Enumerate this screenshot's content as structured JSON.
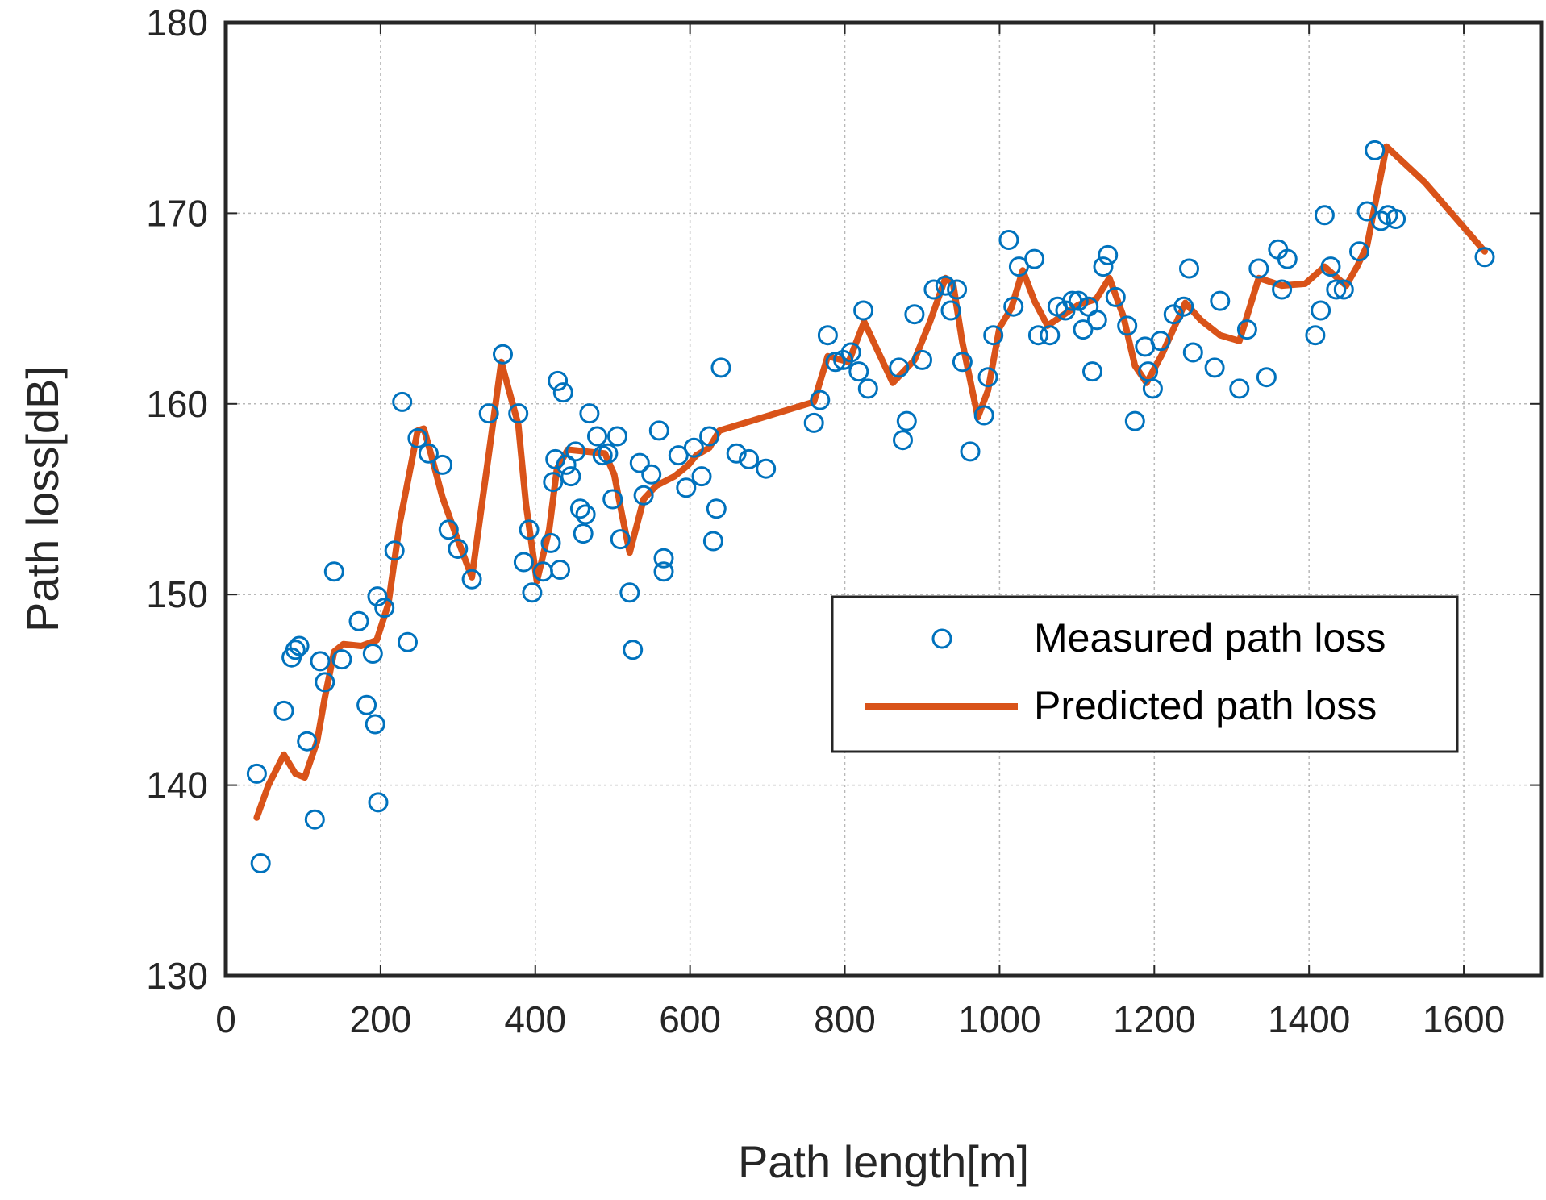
{
  "chart_data": {
    "type": "scatter",
    "title": "",
    "xlabel": "Path length[m]",
    "ylabel": "Path loss[dB]",
    "xlim": [
      0,
      1700
    ],
    "ylim": [
      130,
      180
    ],
    "xticks": [
      0,
      200,
      400,
      600,
      800,
      1000,
      1200,
      1400,
      1600
    ],
    "yticks": [
      130,
      140,
      150,
      160,
      170,
      180
    ],
    "grid": true,
    "legend_position": "center-right",
    "colors": {
      "measured": "#0072BD",
      "predicted": "#D95319"
    },
    "series": [
      {
        "name": "Measured path loss",
        "kind": "markers",
        "marker": "circle-open",
        "points": [
          [
            40,
            140.6
          ],
          [
            45,
            135.9
          ],
          [
            75,
            143.9
          ],
          [
            85,
            146.7
          ],
          [
            90,
            147.1
          ],
          [
            95,
            147.3
          ],
          [
            105,
            142.3
          ],
          [
            115,
            138.2
          ],
          [
            122,
            146.5
          ],
          [
            128,
            145.4
          ],
          [
            140,
            151.2
          ],
          [
            150,
            146.6
          ],
          [
            172,
            148.6
          ],
          [
            182,
            144.2
          ],
          [
            190,
            146.9
          ],
          [
            193,
            143.2
          ],
          [
            196,
            149.9
          ],
          [
            197,
            139.1
          ],
          [
            205,
            149.3
          ],
          [
            218,
            152.3
          ],
          [
            228,
            160.1
          ],
          [
            235,
            147.5
          ],
          [
            248,
            158.2
          ],
          [
            262,
            157.4
          ],
          [
            280,
            156.8
          ],
          [
            288,
            153.4
          ],
          [
            300,
            152.4
          ],
          [
            318,
            150.8
          ],
          [
            340,
            159.5
          ],
          [
            358,
            162.6
          ],
          [
            378,
            159.5
          ],
          [
            385,
            151.7
          ],
          [
            392,
            153.4
          ],
          [
            396,
            150.1
          ],
          [
            410,
            151.2
          ],
          [
            420,
            152.7
          ],
          [
            423,
            155.9
          ],
          [
            426,
            157.1
          ],
          [
            429,
            161.2
          ],
          [
            432,
            151.3
          ],
          [
            436,
            160.6
          ],
          [
            440,
            156.8
          ],
          [
            446,
            156.2
          ],
          [
            452,
            157.5
          ],
          [
            458,
            154.5
          ],
          [
            462,
            153.2
          ],
          [
            465,
            154.2
          ],
          [
            470,
            159.5
          ],
          [
            480,
            158.3
          ],
          [
            487,
            157.3
          ],
          [
            494,
            157.4
          ],
          [
            500,
            155.0
          ],
          [
            506,
            158.3
          ],
          [
            510,
            152.9
          ],
          [
            522,
            150.1
          ],
          [
            526,
            147.1
          ],
          [
            535,
            156.9
          ],
          [
            540,
            155.2
          ],
          [
            550,
            156.3
          ],
          [
            560,
            158.6
          ],
          [
            566,
            151.9
          ],
          [
            566,
            151.2
          ],
          [
            585,
            157.3
          ],
          [
            595,
            155.6
          ],
          [
            605,
            157.7
          ],
          [
            615,
            156.2
          ],
          [
            625,
            158.3
          ],
          [
            630,
            152.8
          ],
          [
            634,
            154.5
          ],
          [
            640,
            161.9
          ],
          [
            660,
            157.4
          ],
          [
            676,
            157.1
          ],
          [
            698,
            156.6
          ],
          [
            760,
            159.0
          ],
          [
            768,
            160.2
          ],
          [
            778,
            163.6
          ],
          [
            788,
            162.2
          ],
          [
            798,
            162.3
          ],
          [
            808,
            162.7
          ],
          [
            818,
            161.7
          ],
          [
            824,
            164.9
          ],
          [
            830,
            160.8
          ],
          [
            870,
            161.9
          ],
          [
            875,
            158.1
          ],
          [
            880,
            159.1
          ],
          [
            890,
            164.7
          ],
          [
            900,
            162.3
          ],
          [
            915,
            166.0
          ],
          [
            930,
            166.2
          ],
          [
            937,
            164.9
          ],
          [
            945,
            166.0
          ],
          [
            952,
            162.2
          ],
          [
            962,
            157.5
          ],
          [
            980,
            159.4
          ],
          [
            985,
            161.4
          ],
          [
            992,
            163.6
          ],
          [
            1012,
            168.6
          ],
          [
            1018,
            165.1
          ],
          [
            1025,
            167.2
          ],
          [
            1045,
            167.6
          ],
          [
            1050,
            163.6
          ],
          [
            1065,
            163.6
          ],
          [
            1075,
            165.1
          ],
          [
            1085,
            164.9
          ],
          [
            1094,
            165.4
          ],
          [
            1102,
            165.4
          ],
          [
            1108,
            163.9
          ],
          [
            1115,
            165.1
          ],
          [
            1120,
            161.7
          ],
          [
            1126,
            164.4
          ],
          [
            1134,
            167.2
          ],
          [
            1140,
            167.8
          ],
          [
            1150,
            165.6
          ],
          [
            1165,
            164.1
          ],
          [
            1175,
            159.1
          ],
          [
            1188,
            163.0
          ],
          [
            1192,
            161.7
          ],
          [
            1198,
            160.8
          ],
          [
            1208,
            163.3
          ],
          [
            1225,
            164.7
          ],
          [
            1238,
            165.1
          ],
          [
            1245,
            167.1
          ],
          [
            1250,
            162.7
          ],
          [
            1278,
            161.9
          ],
          [
            1285,
            165.4
          ],
          [
            1310,
            160.8
          ],
          [
            1320,
            163.9
          ],
          [
            1335,
            167.1
          ],
          [
            1345,
            161.4
          ],
          [
            1360,
            168.1
          ],
          [
            1365,
            166.0
          ],
          [
            1372,
            167.6
          ],
          [
            1408,
            163.6
          ],
          [
            1415,
            164.9
          ],
          [
            1420,
            169.9
          ],
          [
            1428,
            167.2
          ],
          [
            1435,
            166.0
          ],
          [
            1445,
            166.0
          ],
          [
            1465,
            168.0
          ],
          [
            1475,
            170.1
          ],
          [
            1485,
            173.3
          ],
          [
            1493,
            169.6
          ],
          [
            1502,
            169.9
          ],
          [
            1512,
            169.7
          ],
          [
            1627,
            167.7
          ]
        ]
      },
      {
        "name": "Predicted path loss",
        "kind": "line",
        "points": [
          [
            40,
            138.3
          ],
          [
            55,
            140.0
          ],
          [
            75,
            141.6
          ],
          [
            90,
            140.6
          ],
          [
            102,
            140.4
          ],
          [
            118,
            142.3
          ],
          [
            128,
            144.6
          ],
          [
            140,
            147.0
          ],
          [
            152,
            147.4
          ],
          [
            175,
            147.3
          ],
          [
            195,
            147.6
          ],
          [
            210,
            149.5
          ],
          [
            225,
            153.8
          ],
          [
            248,
            158.6
          ],
          [
            256,
            158.7
          ],
          [
            265,
            157.4
          ],
          [
            280,
            155.1
          ],
          [
            295,
            153.4
          ],
          [
            318,
            150.9
          ],
          [
            340,
            157.4
          ],
          [
            356,
            162.2
          ],
          [
            378,
            158.9
          ],
          [
            388,
            154.7
          ],
          [
            402,
            150.7
          ],
          [
            418,
            153.4
          ],
          [
            428,
            156.6
          ],
          [
            442,
            157.6
          ],
          [
            490,
            157.4
          ],
          [
            502,
            156.3
          ],
          [
            512,
            154.2
          ],
          [
            522,
            152.2
          ],
          [
            540,
            155.0
          ],
          [
            556,
            155.7
          ],
          [
            580,
            156.2
          ],
          [
            598,
            156.8
          ],
          [
            608,
            157.3
          ],
          [
            625,
            157.7
          ],
          [
            638,
            158.6
          ],
          [
            760,
            160.1
          ],
          [
            778,
            162.5
          ],
          [
            805,
            162.2
          ],
          [
            825,
            164.3
          ],
          [
            862,
            161.1
          ],
          [
            890,
            162.3
          ],
          [
            910,
            164.3
          ],
          [
            930,
            166.6
          ],
          [
            940,
            166.3
          ],
          [
            952,
            163.2
          ],
          [
            972,
            159.3
          ],
          [
            985,
            160.7
          ],
          [
            1000,
            164.0
          ],
          [
            1015,
            165.0
          ],
          [
            1030,
            167.0
          ],
          [
            1045,
            165.4
          ],
          [
            1062,
            164.1
          ],
          [
            1080,
            164.6
          ],
          [
            1102,
            165.2
          ],
          [
            1125,
            165.5
          ],
          [
            1142,
            166.6
          ],
          [
            1160,
            164.6
          ],
          [
            1175,
            162.0
          ],
          [
            1190,
            161.1
          ],
          [
            1210,
            162.6
          ],
          [
            1240,
            165.3
          ],
          [
            1260,
            164.4
          ],
          [
            1285,
            163.6
          ],
          [
            1310,
            163.3
          ],
          [
            1335,
            166.6
          ],
          [
            1365,
            166.2
          ],
          [
            1395,
            166.3
          ],
          [
            1420,
            167.2
          ],
          [
            1448,
            166.2
          ],
          [
            1462,
            167.2
          ],
          [
            1475,
            168.3
          ],
          [
            1500,
            173.5
          ],
          [
            1550,
            171.6
          ],
          [
            1627,
            168.0
          ]
        ]
      }
    ]
  }
}
